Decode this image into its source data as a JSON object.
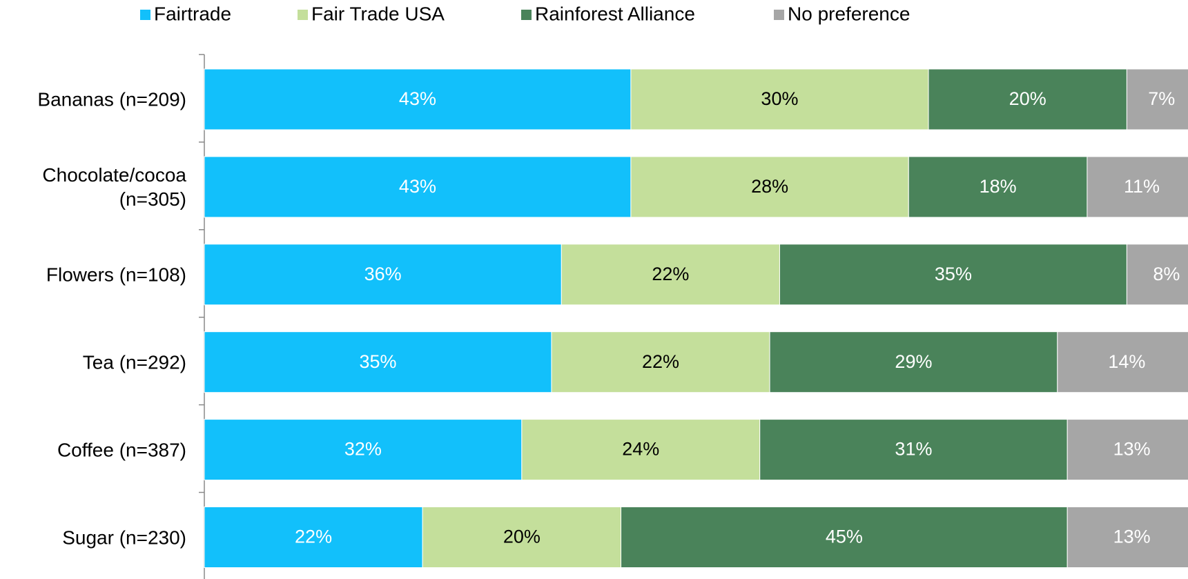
{
  "chart_data": {
    "type": "stacked-bar-horizontal",
    "categories": [
      "Bananas (n=209)",
      "Chocolate/cocoa (n=305)",
      "Flowers (n=108)",
      "Tea (n=292)",
      "Coffee (n=387)",
      "Sugar (n=230)"
    ],
    "series": [
      {
        "name": "Fairtrade",
        "color": "#12C0FB",
        "label_color": "#ffffff",
        "values": [
          43,
          43,
          36,
          35,
          32,
          22
        ],
        "value_labels": [
          "43%",
          "43%",
          "36%",
          "35%",
          "32%",
          "22%"
        ]
      },
      {
        "name": "Fair Trade USA",
        "color": "#C4DF9B",
        "label_color": "#000000",
        "values": [
          30,
          28,
          22,
          22,
          24,
          20
        ],
        "value_labels": [
          "30%",
          "28%",
          "22%",
          "22%",
          "24%",
          "20%"
        ]
      },
      {
        "name": "Rainforest Alliance",
        "color": "#4A835A",
        "label_color": "#ffffff",
        "values": [
          20,
          18,
          35,
          29,
          31,
          45
        ],
        "value_labels": [
          "20%",
          "18%",
          "35%",
          "29%",
          "31%",
          "45%"
        ]
      },
      {
        "name": "No preference",
        "color": "#A6A6A6",
        "label_color": "#ffffff",
        "values": [
          7,
          11,
          8,
          14,
          13,
          13
        ],
        "value_labels": [
          "7%",
          "11%",
          "8%",
          "14%",
          "13%",
          "13%"
        ]
      }
    ],
    "xlim": [
      0,
      100
    ]
  }
}
